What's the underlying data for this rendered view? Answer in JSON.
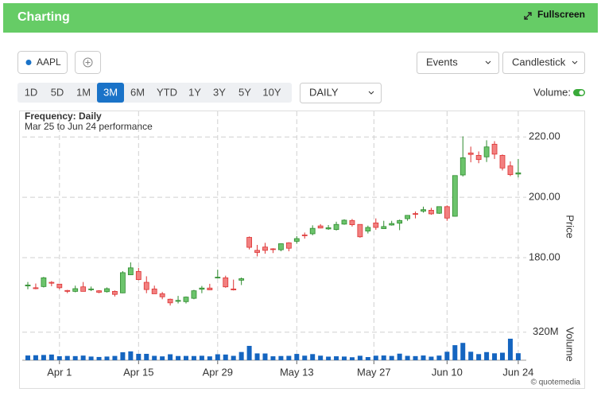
{
  "header": {
    "title": "Charting",
    "fullscreen": "Fullscreen"
  },
  "toolbar": {
    "symbol": "AAPL",
    "events": "Events",
    "chart_style": "Candlestick",
    "ranges": [
      "1D",
      "5D",
      "1M",
      "3M",
      "6M",
      "YTD",
      "1Y",
      "3Y",
      "5Y",
      "10Y"
    ],
    "active_range": 3,
    "interval": "DAILY",
    "volume_toggle": "Volume:"
  },
  "chart_data": {
    "type": "candlestick",
    "title": "Frequency: Daily",
    "subtitle": "Mar 25 to Jun 24 performance",
    "categories": [
      "Mar 25",
      "Mar 26",
      "Mar 27",
      "Mar 28",
      "Apr 1",
      "Apr 2",
      "Apr 3",
      "Apr 4",
      "Apr 5",
      "Apr 8",
      "Apr 9",
      "Apr 10",
      "Apr 11",
      "Apr 12",
      "Apr 15",
      "Apr 16",
      "Apr 17",
      "Apr 18",
      "Apr 19",
      "Apr 22",
      "Apr 23",
      "Apr 24",
      "Apr 25",
      "Apr 26",
      "Apr 29",
      "Apr 30",
      "May 1",
      "May 2",
      "May 3",
      "May 6",
      "May 7",
      "May 8",
      "May 9",
      "May 10",
      "May 13",
      "May 14",
      "May 15",
      "May 16",
      "May 17",
      "May 20",
      "May 21",
      "May 22",
      "May 23",
      "May 24",
      "May 28",
      "May 29",
      "May 30",
      "May 31",
      "Jun 3",
      "Jun 4",
      "Jun 5",
      "Jun 6",
      "Jun 7",
      "Jun 10",
      "Jun 11",
      "Jun 12",
      "Jun 13",
      "Jun 14",
      "Jun 17",
      "Jun 18",
      "Jun 20",
      "Jun 21",
      "Jun 24"
    ],
    "open": [
      170.6,
      170.0,
      170.4,
      171.8,
      171.2,
      169.1,
      168.8,
      170.3,
      169.6,
      169.0,
      168.7,
      168.8,
      168.3,
      174.3,
      175.4,
      171.8,
      169.6,
      168.0,
      166.2,
      165.5,
      165.4,
      166.5,
      169.5,
      169.9,
      173.4,
      173.3,
      169.6,
      172.5,
      186.7,
      182.4,
      183.5,
      182.9,
      182.6,
      184.9,
      185.4,
      187.5,
      187.9,
      190.5,
      189.5,
      189.3,
      191.1,
      192.3,
      191.0,
      188.8,
      191.5,
      189.6,
      190.8,
      191.4,
      192.9,
      194.6,
      195.4,
      195.7,
      194.7,
      196.9,
      193.7,
      207.4,
      214.7,
      213.9,
      213.4,
      217.6,
      213.9,
      210.4,
      207.7
    ],
    "high": [
      171.9,
      171.4,
      173.6,
      172.2,
      171.3,
      169.3,
      170.7,
      171.9,
      170.4,
      169.2,
      170.1,
      169.1,
      175.5,
      178.4,
      176.6,
      173.8,
      170.7,
      168.6,
      166.4,
      167.3,
      167.1,
      169.3,
      170.6,
      171.3,
      176.0,
      174.0,
      172.7,
      173.4,
      187.0,
      184.2,
      184.9,
      183.1,
      184.7,
      185.1,
      187.1,
      188.3,
      190.7,
      191.1,
      190.8,
      191.9,
      192.7,
      192.8,
      191.0,
      190.6,
      193.0,
      192.2,
      192.2,
      192.6,
      194.1,
      195.3,
      196.9,
      196.5,
      196.9,
      197.3,
      207.2,
      220.2,
      216.8,
      215.2,
      218.9,
      218.6,
      214.2,
      211.9,
      212.7
    ],
    "low": [
      169.5,
      169.5,
      170.1,
      170.5,
      169.5,
      168.2,
      168.5,
      168.8,
      168.9,
      168.2,
      168.4,
      167.1,
      168.2,
      174.2,
      172.5,
      168.2,
      168.0,
      166.2,
      164.1,
      164.8,
      164.8,
      166.2,
      168.2,
      169.2,
      173.1,
      170.0,
      169.1,
      170.9,
      182.7,
      180.4,
      181.3,
      181.5,
      182.1,
      182.1,
      184.6,
      186.3,
      187.4,
      189.7,
      189.2,
      189.0,
      190.9,
      190.3,
      186.6,
      188.0,
      189.2,
      189.5,
      190.6,
      189.1,
      192.2,
      193.0,
      194.9,
      194.2,
      194.5,
      192.2,
      193.6,
      206.9,
      211.6,
      211.3,
      211.7,
      212.7,
      208.9,
      207.0,
      206.6
    ],
    "close": [
      170.9,
      169.7,
      173.3,
      171.5,
      170.0,
      168.8,
      169.7,
      168.8,
      169.6,
      168.5,
      169.7,
      167.8,
      175.0,
      176.6,
      172.7,
      169.4,
      168.0,
      167.0,
      165.0,
      165.8,
      166.9,
      169.0,
      169.9,
      169.3,
      173.5,
      170.3,
      169.3,
      173.0,
      183.4,
      181.7,
      182.4,
      182.7,
      184.6,
      183.1,
      186.3,
      187.4,
      189.7,
      189.8,
      189.9,
      191.0,
      192.4,
      190.9,
      186.9,
      190.0,
      190.0,
      190.3,
      191.3,
      192.3,
      194.0,
      194.4,
      195.9,
      194.5,
      196.9,
      193.1,
      207.2,
      213.1,
      214.2,
      212.5,
      216.7,
      214.3,
      209.7,
      207.5,
      208.1
    ],
    "up_color": "#6cc46c",
    "down_color": "#f28080",
    "ylim": [
      161,
      228.5
    ],
    "yticks": [
      {
        "value": 180,
        "label": "180.00"
      },
      {
        "value": 200,
        "label": "200.00"
      },
      {
        "value": 220,
        "label": "220.00"
      }
    ],
    "y_label": "Price",
    "xticks": [
      "Apr 1",
      "Apr 15",
      "Apr 29",
      "May 13",
      "May 27",
      "Jun 10",
      "Jun 24"
    ],
    "grid": true,
    "volume": {
      "label": "Volume",
      "color": "#1565c0",
      "ylim": [
        0,
        400
      ],
      "yticks": [
        {
          "value": 320,
          "label": "320M"
        }
      ],
      "values": [
        54,
        57,
        60,
        65,
        46,
        49,
        47,
        53,
        42,
        37,
        42,
        49,
        91,
        101,
        73,
        73,
        50,
        44,
        68,
        48,
        49,
        48,
        51,
        44,
        68,
        65,
        50,
        94,
        164,
        78,
        77,
        45,
        48,
        50,
        72,
        52,
        70,
        52,
        41,
        45,
        42,
        34,
        51,
        36,
        52,
        54,
        49,
        75,
        50,
        47,
        54,
        41,
        53,
        97,
        172,
        198,
        97,
        70,
        93,
        79,
        86,
        246,
        80
      ]
    }
  },
  "credit": "© quotemedia"
}
